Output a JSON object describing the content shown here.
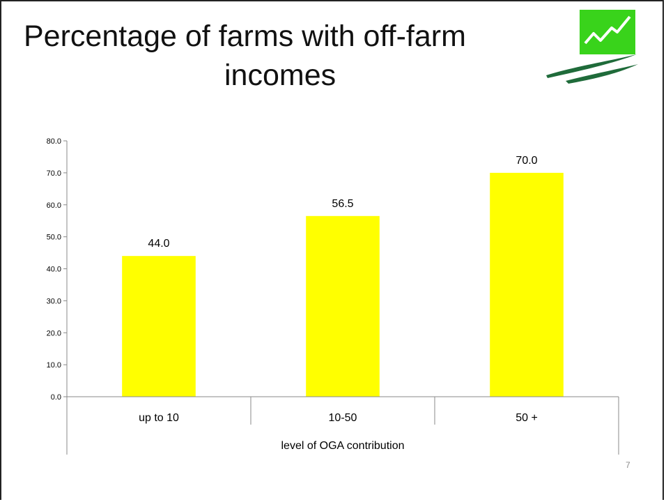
{
  "slide": {
    "title_line1": "Percentage of farms with off-farm",
    "title_line2": "incomes",
    "slide_number": "7",
    "logo_icon": "green-chart-arrow-logo"
  },
  "colors": {
    "bar": "#ffff00",
    "logo_green": "#39d31b",
    "logo_swoosh": "#1f6b3a"
  },
  "chart_data": {
    "type": "bar",
    "categories": [
      "up to 10",
      "10-50",
      "50 +"
    ],
    "values": [
      44.0,
      56.5,
      70.0
    ],
    "value_labels": [
      "44.0",
      "56.5",
      "70.0"
    ],
    "yticks": [
      "0.0",
      "10.0",
      "20.0",
      "30.0",
      "40.0",
      "50.0",
      "60.0",
      "70.0",
      "80.0"
    ],
    "ylim": [
      0,
      80
    ],
    "xlabel": "level of OGA contribution",
    "ylabel": "",
    "grid": false,
    "legend": "none"
  }
}
